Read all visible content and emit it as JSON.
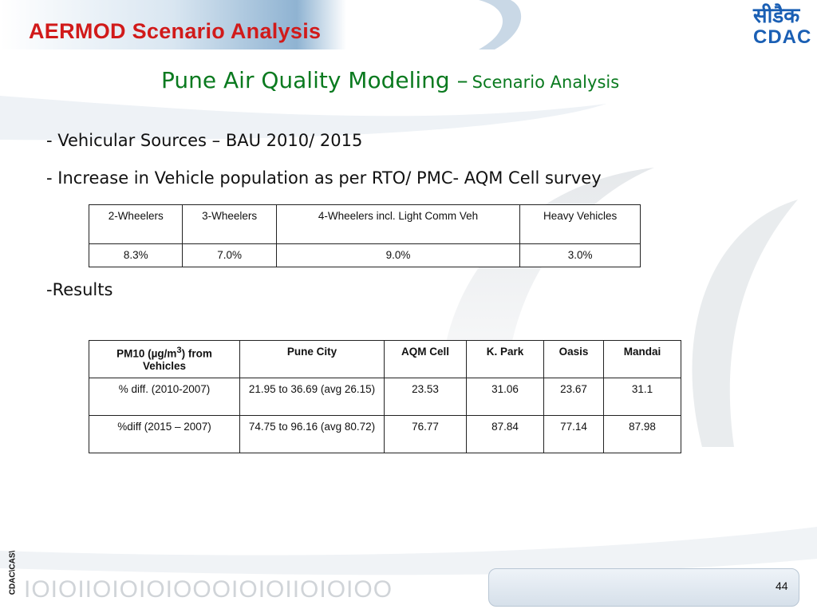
{
  "header": {
    "title": "AERMOD Scenario Analysis"
  },
  "logo": {
    "hindi": "सीडैक",
    "latin": "CDAC"
  },
  "slide": {
    "title_main": "Pune Air Quality Modeling –",
    "title_sub": "Scenario Analysis"
  },
  "bullets": {
    "b1_dash": "-",
    "b1_text": "Vehicular Sources – BAU 2010/ 2015",
    "b2_dash": "-",
    "b2_text": "Increase in Vehicle population as per RTO/ PMC- AQM Cell survey",
    "b3_dash": "-",
    "b3_text": "Results"
  },
  "table1": {
    "headers": [
      "2-Wheelers",
      "3-Wheelers",
      "4-Wheelers incl. Light Comm Veh",
      "Heavy Vehicles"
    ],
    "values": [
      "8.3%",
      "7.0%",
      "9.0%",
      "3.0%"
    ]
  },
  "table2": {
    "header_pm10_a": "PM10 (µg/m",
    "header_pm10_sup": "3",
    "header_pm10_b": ") from Vehicles",
    "headers": [
      "Pune City",
      "AQM Cell",
      "K. Park",
      "Oasis",
      "Mandai"
    ],
    "rows": [
      {
        "label": "% diff. (2010-2007)",
        "cells": [
          "21.95 to 36.69 (avg 26.15)",
          "23.53",
          "31.06",
          "23.67",
          "31.1"
        ]
      },
      {
        "label": "%diff (2015 – 2007)",
        "cells": [
          "74.75 to 96.16 (avg 80.72)",
          "76.77",
          "87.84",
          "77.14",
          "87.98"
        ]
      }
    ]
  },
  "footer": {
    "vertical_text": "CDAC\\CAS\\",
    "page_number": "44",
    "binary_text": "IOIOIIOIOIOIOOOIOIOIIOIOIOO"
  },
  "colors": {
    "title_red": "#d11a1a",
    "title_green": "#0a7a1f",
    "logo_blue": "#1a5fb4"
  }
}
